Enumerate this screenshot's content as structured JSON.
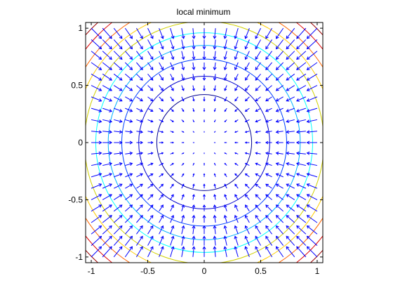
{
  "chart_data": {
    "type": "contour-quiver",
    "title": "local minimum",
    "xlabel": "",
    "ylabel": "",
    "xlim": [
      -1.05,
      1.05
    ],
    "ylim": [
      -1.05,
      1.05
    ],
    "xticks": [
      -1,
      -0.5,
      0,
      0.5,
      1
    ],
    "yticks": [
      -1,
      -0.5,
      0,
      0.5,
      1
    ],
    "xtick_labels": [
      "-1",
      "-0.5",
      "0",
      "0.5",
      "1"
    ],
    "ytick_labels": [
      "1",
      "0.5",
      "0",
      "-0.5",
      "-1"
    ],
    "grid": false,
    "contour_levels": [
      {
        "radius": 0.42,
        "color": "#00008f"
      },
      {
        "radius": 0.58,
        "color": "#0000cc"
      },
      {
        "radius": 0.73,
        "color": "#0040ff"
      },
      {
        "radius": 0.85,
        "color": "#00b0ff"
      },
      {
        "radius": 0.96,
        "color": "#00ffff"
      },
      {
        "radius": 1.06,
        "color": "#d0d000"
      },
      {
        "radius": 1.15,
        "color": "#ffcc00"
      },
      {
        "radius": 1.24,
        "color": "#ff6600"
      },
      {
        "radius": 1.33,
        "color": "#dd0000"
      },
      {
        "radius": 1.41,
        "color": "#990000"
      }
    ],
    "vector_field": {
      "x_range": [
        -1,
        1
      ],
      "y_range": [
        -1,
        1
      ],
      "spacing": 0.1,
      "function": "negative gradient of x^2 + y^2",
      "color": "#0000ff"
    }
  }
}
